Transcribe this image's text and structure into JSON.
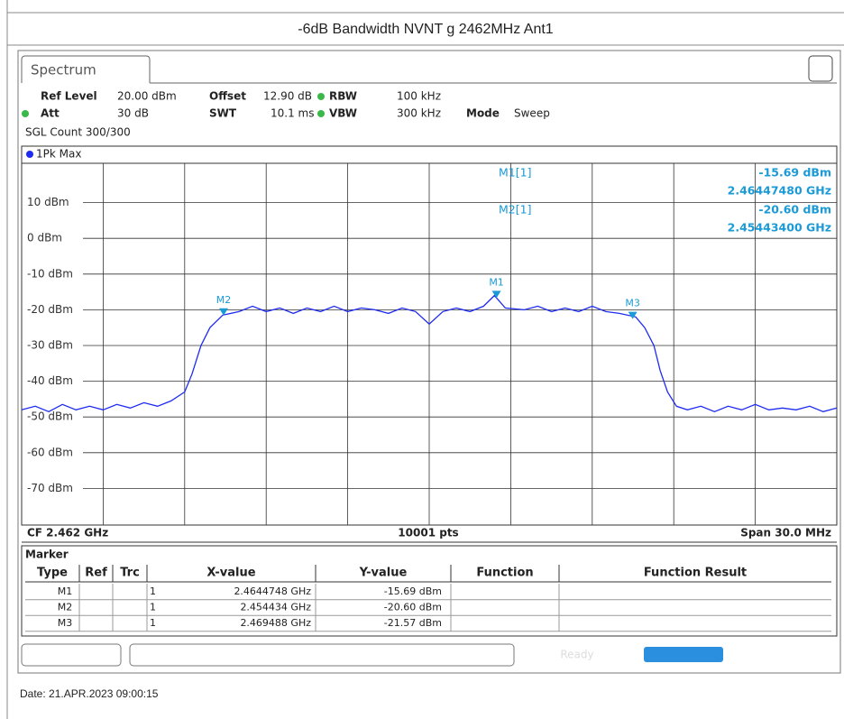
{
  "header": {
    "title": "-6dB Bandwidth NVNT g 2462MHz Ant1"
  },
  "tab": "Spectrum",
  "settings": [
    {
      "label": "Ref Level",
      "value": "20.00 dBm"
    },
    {
      "label": "Offset",
      "value": "12.90 dB"
    },
    {
      "label": "RBW",
      "value": "100 kHz"
    },
    {
      "label": "Att",
      "value": "30 dB"
    },
    {
      "label": "SWT",
      "value": "10.1 ms"
    },
    {
      "label": "VBW",
      "value": "300 kHz"
    },
    {
      "label": "Mode",
      "value": "Sweep"
    }
  ],
  "sgl_count": "SGL Count 300/300",
  "chart_data": {
    "type": "line",
    "xlim": [
      2.447,
      2.477
    ],
    "ylim": [
      -80,
      20
    ],
    "xticks": [
      2.45,
      2.453,
      2.456,
      2.459,
      2.462,
      2.465,
      2.468,
      2.471,
      2.474
    ],
    "yticks": [
      {
        "value": 10,
        "label": "10 dBm"
      },
      {
        "value": 0,
        "label": "0 dBm"
      },
      {
        "value": -10,
        "label": "-10 dBm"
      },
      {
        "value": -20,
        "label": "-20 dBm"
      },
      {
        "value": -30,
        "label": "-30 dBm"
      },
      {
        "value": -40,
        "label": "-40 dBm"
      },
      {
        "value": -50,
        "label": "-50 dBm"
      },
      {
        "value": -60,
        "label": "-60 dBm"
      },
      {
        "value": -70,
        "label": "-70 dBm"
      }
    ],
    "grid": true,
    "x": [
      2.447,
      2.4475,
      2.448,
      2.4485,
      2.449,
      2.4495,
      2.45,
      2.4505,
      2.451,
      2.4515,
      2.452,
      2.4525,
      2.453,
      2.45327,
      2.4536,
      2.45393,
      2.4544,
      2.455,
      2.4555,
      2.456,
      2.4565,
      2.457,
      2.4575,
      2.458,
      2.4585,
      2.459,
      2.4595,
      2.46,
      2.4605,
      2.461,
      2.4615,
      2.462,
      2.4625,
      2.463,
      2.4635,
      2.464,
      2.4644,
      2.4648,
      2.4655,
      2.466,
      2.4665,
      2.467,
      2.4675,
      2.468,
      2.4685,
      2.469,
      2.4696,
      2.46993,
      2.47027,
      2.4705,
      2.47077,
      2.4711,
      2.4715,
      2.472,
      2.4725,
      2.473,
      2.4735,
      2.474,
      2.4745,
      2.475,
      2.4755,
      2.476,
      2.4765,
      2.477
    ],
    "series": [
      {
        "name": "1Pk Max",
        "color": "#1e2bf0",
        "values": [
          -48,
          -47,
          -48.5,
          -46.5,
          -48,
          -47,
          -48,
          -46.5,
          -47.5,
          -46,
          -47,
          -45.5,
          -43,
          -38,
          -30,
          -25,
          -21.5,
          -20.5,
          -19,
          -20.5,
          -19.5,
          -21,
          -19.5,
          -20.5,
          -19,
          -20.5,
          -19.5,
          -20,
          -21,
          -19.5,
          -20.5,
          -24,
          -20.5,
          -19.5,
          -20.5,
          -19,
          -16,
          -19.5,
          -20,
          -19,
          -20.5,
          -19.5,
          -20.5,
          -19,
          -20.5,
          -21,
          -22,
          -25,
          -30,
          -37,
          -43,
          -47,
          -48,
          -47,
          -48.5,
          -47,
          -48,
          -46.5,
          -48,
          -47.5,
          -48,
          -47,
          -48.5,
          -47.5
        ]
      }
    ],
    "markers": [
      {
        "name": "M1",
        "x": 2.4644748,
        "y": -15.69
      },
      {
        "name": "M2",
        "x": 2.454434,
        "y": -20.6
      },
      {
        "name": "M3",
        "x": 2.469488,
        "y": -21.57
      }
    ]
  },
  "readout": [
    {
      "name": "M1[1]",
      "y": "-15.69 dBm",
      "x": "2.46447480 GHz"
    },
    {
      "name": "M2[1]",
      "y": "-20.60 dBm",
      "x": "2.45443400 GHz"
    }
  ],
  "footer": {
    "left": "CF 2.462 GHz",
    "center": "10001 pts",
    "right": "Span 30.0 MHz"
  },
  "marker_table": {
    "title": "Marker",
    "columns": [
      "Type",
      "Ref",
      "Trc",
      "X-value",
      "Y-value",
      "Function",
      "Function Result"
    ],
    "rows": [
      {
        "type": "M1",
        "trc": "1",
        "x": "2.4644748 GHz",
        "y": "-15.69 dBm"
      },
      {
        "type": "M2",
        "trc": "1",
        "x": "2.454434 GHz",
        "y": "-20.60 dBm"
      },
      {
        "type": "M3",
        "trc": "1",
        "x": "2.469488 GHz",
        "y": "-21.57 dBm"
      }
    ]
  },
  "status": "Ready",
  "date": "Date: 21.APR.2023  09:00:15"
}
